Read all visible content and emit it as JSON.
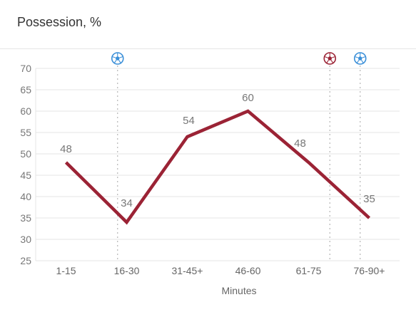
{
  "header": {
    "title": "Possession, %"
  },
  "chart_data": {
    "type": "line",
    "title": "Possession, %",
    "xlabel": "Minutes",
    "ylabel": "",
    "ylim": [
      25,
      70
    ],
    "yticks": [
      25,
      30,
      35,
      40,
      45,
      50,
      55,
      60,
      65,
      70
    ],
    "categories": [
      "1-15",
      "16-30",
      "31-45+",
      "46-60",
      "61-75",
      "76-90+"
    ],
    "series": [
      {
        "name": "",
        "values": [
          48,
          34,
          54,
          60,
          48,
          35
        ],
        "color": "#9b2335"
      }
    ],
    "data_labels": [
      "48",
      "34",
      "54",
      "60",
      "48",
      "35"
    ],
    "grid": true,
    "events": [
      {
        "type": "goal",
        "icon": "football-icon",
        "color": "#3a8fd8",
        "position": 1.35
      },
      {
        "type": "goal-conceded",
        "icon": "football-icon",
        "color": "#9b2335",
        "position": 4.85
      },
      {
        "type": "goal",
        "icon": "football-icon",
        "color": "#3a8fd8",
        "position": 5.35
      }
    ]
  }
}
